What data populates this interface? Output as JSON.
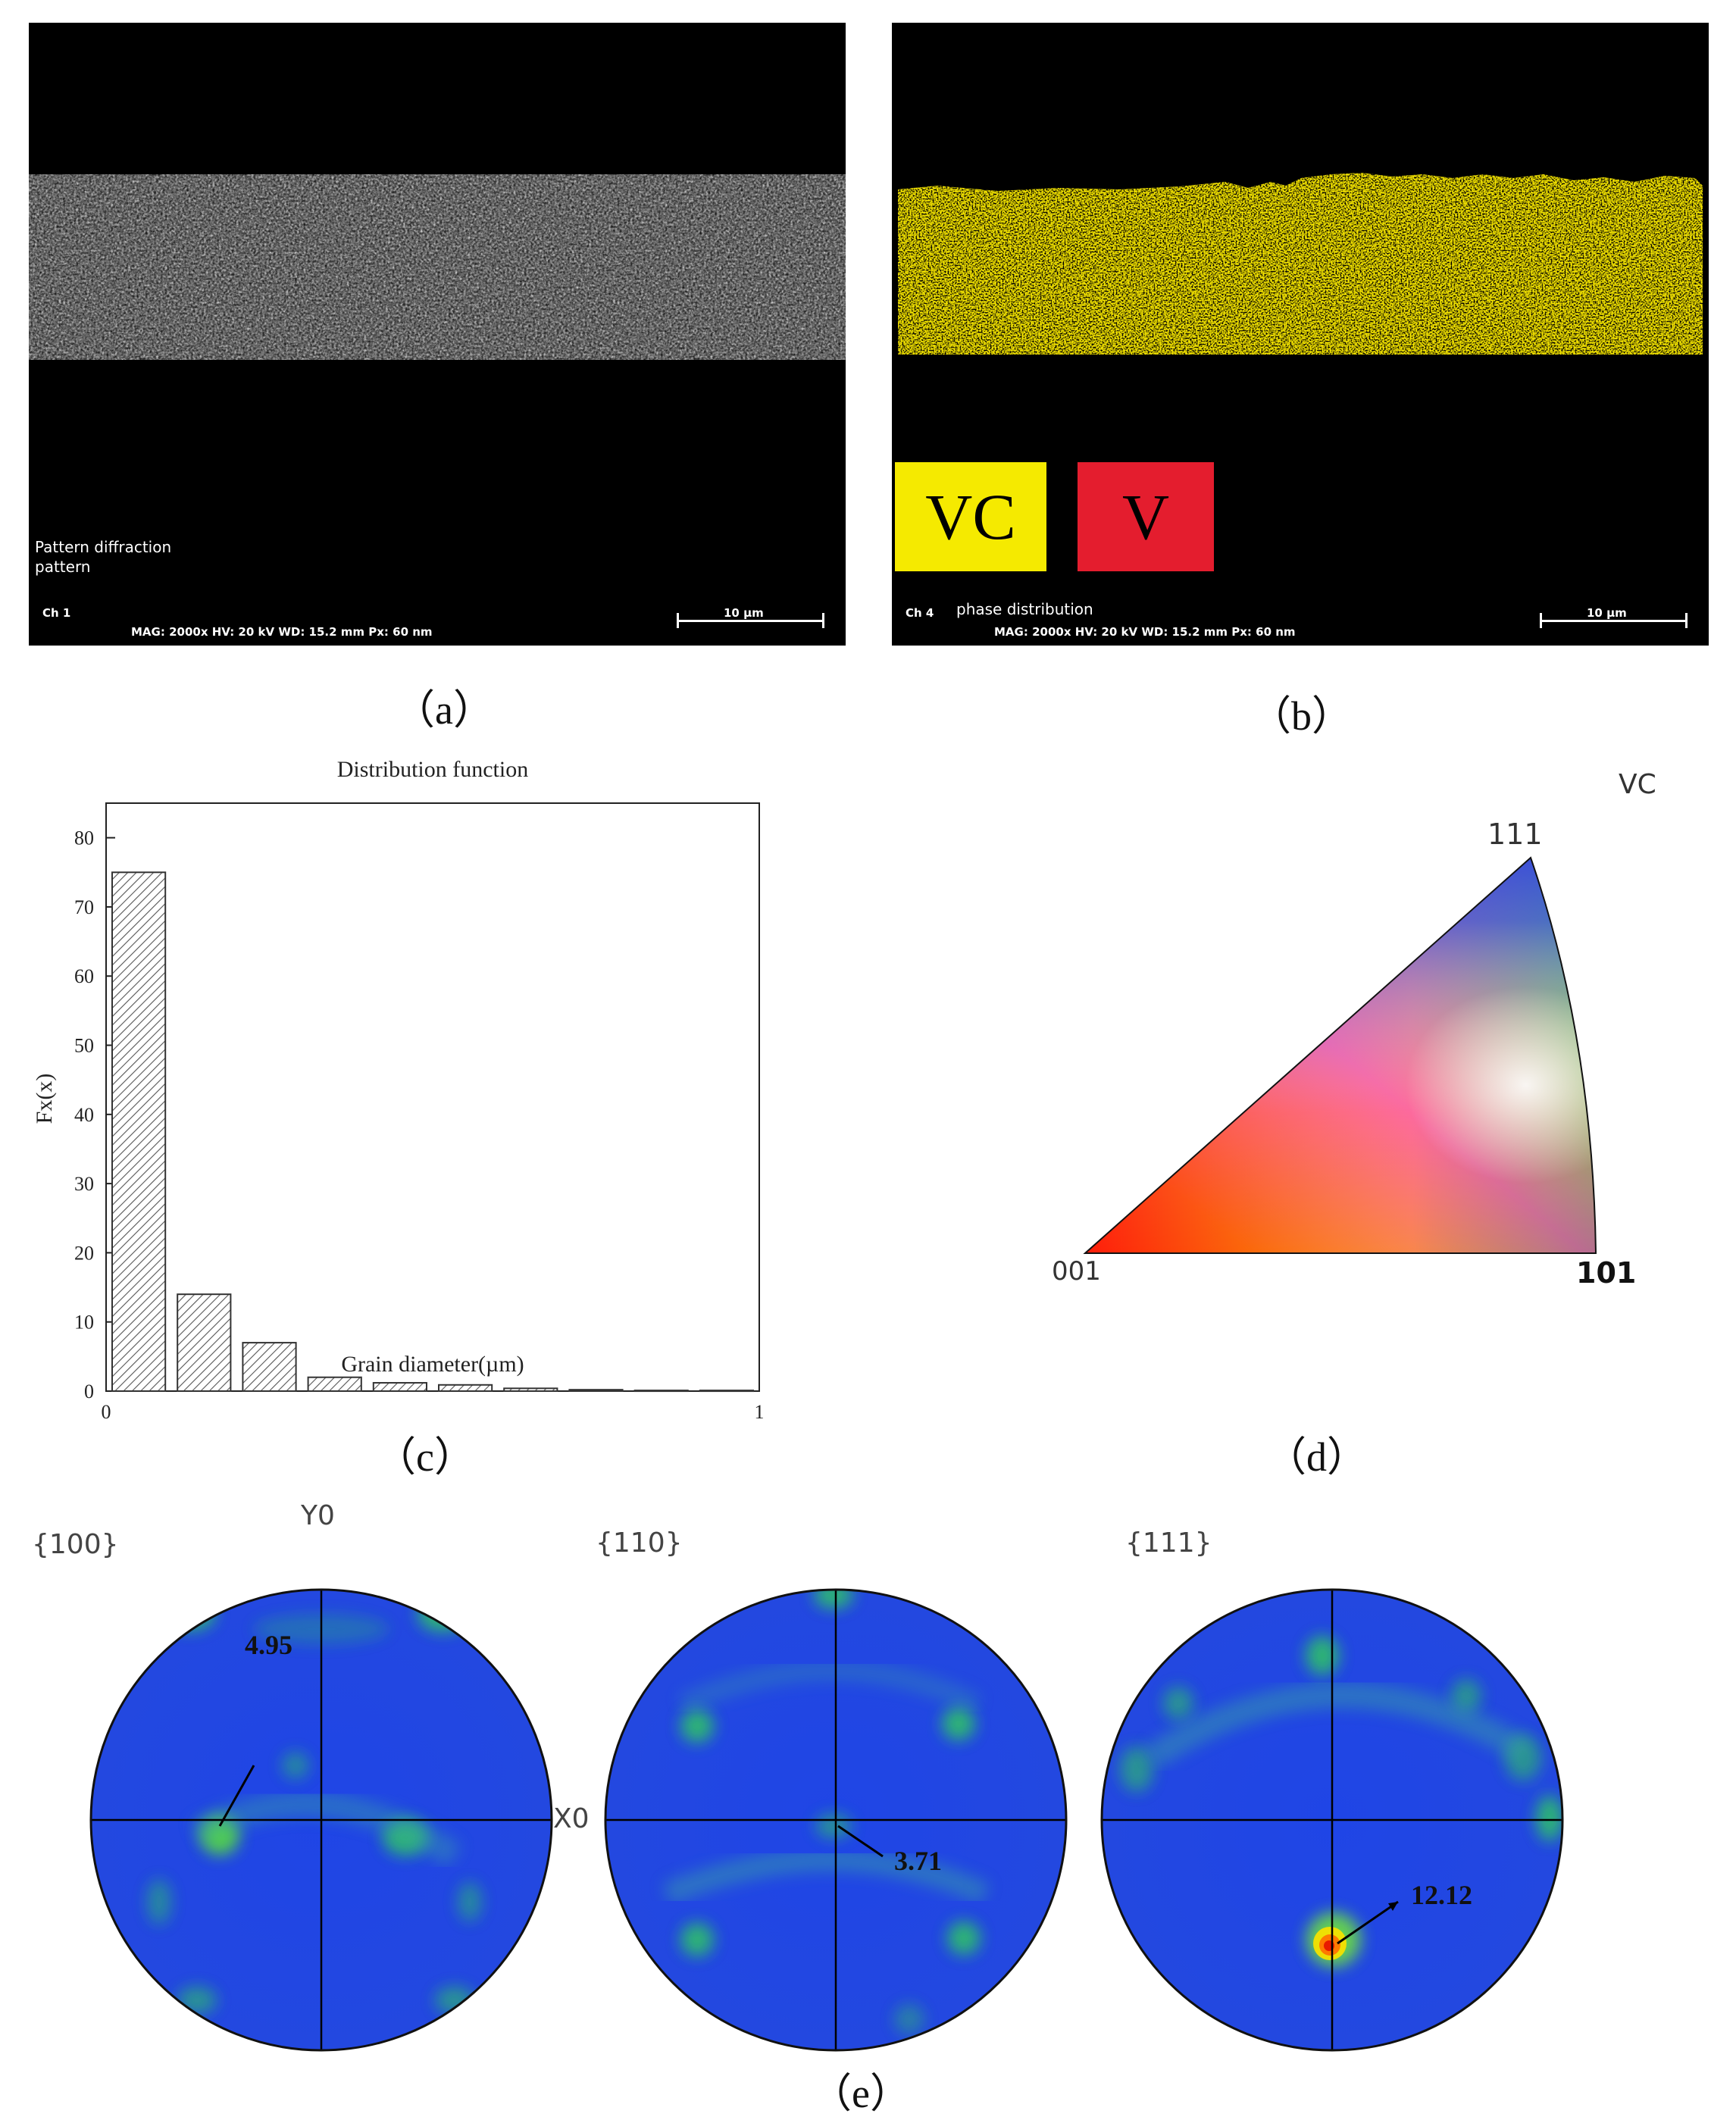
{
  "panel_a": {
    "label1": "Pattern diffraction",
    "label2": "pattern",
    "channel": "Ch 1",
    "info": "MAG: 2000x   HV: 20 kV   WD: 15.2 mm   Px: 60 nm",
    "scale": "10 µm"
  },
  "panel_b": {
    "channel": "Ch 4",
    "label": "phase distribution",
    "info": "MAG: 2000x   HV: 20 kV   WD: 15.2 mm   Px: 60 nm",
    "scale": "10 µm",
    "legend": [
      {
        "label": "VC",
        "color": "#f5ea00"
      },
      {
        "label": "V",
        "color": "#e41d2e"
      }
    ]
  },
  "captions": {
    "a": "（a）",
    "b": "（b）",
    "c": "（c）",
    "d": "（d）",
    "e": "（e）"
  },
  "chart_data": {
    "type": "bar",
    "title": "Distribution function",
    "xlabel": "Grain diameter(µm)",
    "ylabel": "Fx(x)",
    "xlim": [
      0,
      1
    ],
    "ylim": [
      0,
      85
    ],
    "x_ticks": [
      "0",
      "1"
    ],
    "y_ticks": [
      "0",
      "10",
      "20",
      "30",
      "40",
      "50",
      "60",
      "70",
      "80"
    ],
    "bin_width": 0.1,
    "bins": [
      0,
      0.1,
      0.2,
      0.3,
      0.4,
      0.5,
      0.6,
      0.7,
      0.8,
      0.9
    ],
    "values": [
      75,
      14,
      7,
      2,
      1.2,
      0.9,
      0.4,
      0.2,
      0.1,
      0.1
    ],
    "fill": "hatched"
  },
  "panel_d": {
    "phase": "VC",
    "poles": {
      "top": "111",
      "left": "001",
      "right": "101"
    }
  },
  "panel_e": {
    "figures": [
      {
        "label": "{100}",
        "max": "4.95"
      },
      {
        "label": "{110}",
        "max": "3.71"
      },
      {
        "label": "{111}",
        "max": "12.12"
      }
    ],
    "axis_y": "Y0",
    "axis_x": "X0"
  }
}
